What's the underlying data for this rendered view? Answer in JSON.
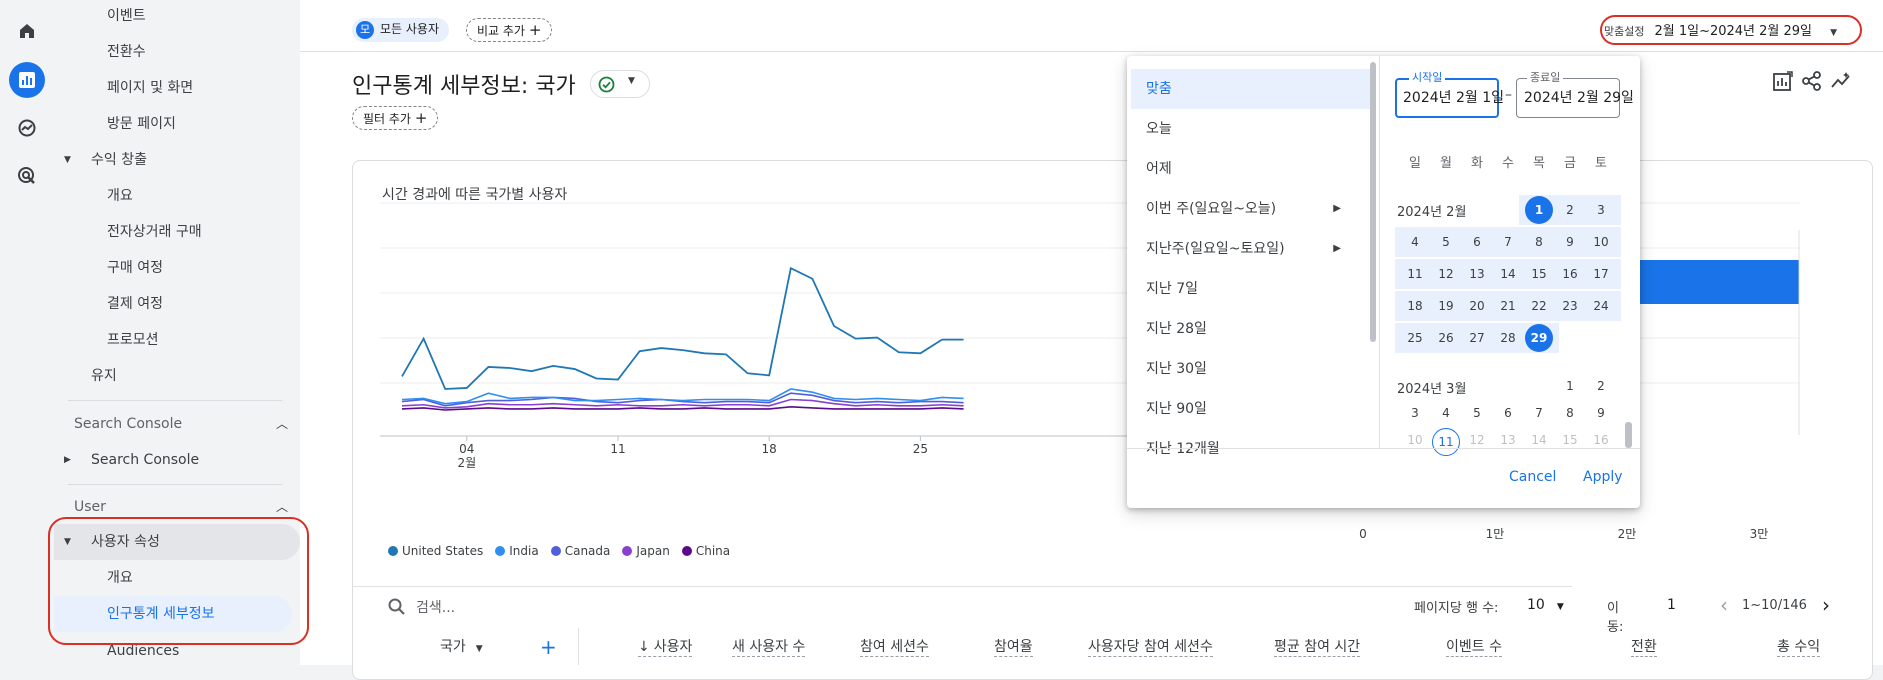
{
  "rail": {
    "icons": [
      "home-icon",
      "reports-icon",
      "explore-icon",
      "advertising-icon"
    ]
  },
  "sidebar": {
    "items_top": [
      {
        "label": "이벤트",
        "level": 2
      },
      {
        "label": "전환수",
        "level": 2
      },
      {
        "label": "페이지 및 화면",
        "level": 2
      },
      {
        "label": "방문 페이지",
        "level": 2
      },
      {
        "label": "수익 창출",
        "level": 1,
        "expanded": true
      },
      {
        "label": "개요",
        "level": 2
      },
      {
        "label": "전자상거래 구매",
        "level": 2
      },
      {
        "label": "구매 여정",
        "level": 2
      },
      {
        "label": "결제 여정",
        "level": 2
      },
      {
        "label": "프로모션",
        "level": 2
      },
      {
        "label": "유지",
        "level": 1
      }
    ],
    "search_console": {
      "header": "Search Console",
      "item": "Search Console"
    },
    "user": {
      "header": "User",
      "group": "사용자 속성",
      "items": [
        "개요",
        "인구통계 세부정보"
      ],
      "audiences": "Audiences"
    }
  },
  "topbar": {
    "audience_avatar": "모",
    "audience_label": "모든 사용자",
    "compare_label": "비교 추가",
    "date_prefix": "맞춤설정",
    "date_range": "2월 1일~2024년 2월 29일"
  },
  "page": {
    "title": "인구통계 세부정보: 국가",
    "filter_label": "필터 추가"
  },
  "chart": {
    "title": "시간 경과에 따른 국가별 사용자"
  },
  "chart_data": {
    "type": "line",
    "x_ticks": [
      {
        "day": 4,
        "label": "04",
        "sub": "2월"
      },
      {
        "day": 11,
        "label": "11"
      },
      {
        "day": 18,
        "label": "18"
      },
      {
        "day": 25,
        "label": "25"
      }
    ],
    "series": [
      {
        "name": "United States",
        "color": "#1f77b4",
        "values": [
          52,
          88,
          40,
          41,
          61,
          60,
          57,
          62,
          59,
          50,
          49,
          76,
          79,
          77,
          74,
          73,
          55,
          53,
          155,
          145,
          100,
          88,
          89,
          75,
          74,
          87,
          87
        ]
      },
      {
        "name": "India",
        "color": "#2f8ff0",
        "values": [
          30,
          31,
          26,
          28,
          36,
          31,
          32,
          32,
          29,
          29,
          30,
          31,
          30,
          29,
          30,
          30,
          30,
          29,
          40,
          37,
          31,
          30,
          31,
          30,
          29,
          32,
          31
        ]
      },
      {
        "name": "Canada",
        "color": "#4f5fdc",
        "values": [
          28,
          30,
          24,
          27,
          29,
          29,
          30,
          32,
          31,
          28,
          27,
          29,
          30,
          28,
          27,
          28,
          28,
          27,
          36,
          34,
          29,
          27,
          28,
          27,
          28,
          28,
          27
        ]
      },
      {
        "name": "Japan",
        "color": "#8a3fd1",
        "values": [
          24,
          25,
          22,
          23,
          26,
          25,
          25,
          26,
          25,
          24,
          25,
          24,
          24,
          25,
          24,
          25,
          25,
          24,
          30,
          29,
          26,
          24,
          25,
          24,
          24,
          25,
          24
        ]
      },
      {
        "name": "China",
        "color": "#5b0a8c",
        "values": [
          21,
          22,
          20,
          21,
          22,
          21,
          21,
          22,
          21,
          21,
          21,
          22,
          21,
          21,
          22,
          21,
          21,
          21,
          23,
          22,
          21,
          21,
          21,
          21,
          21,
          22,
          21
        ]
      }
    ],
    "bar": {
      "x_ticks": [
        "0",
        "1만",
        "2만",
        "3만"
      ],
      "value": 33000
    }
  },
  "table": {
    "search_placeholder": "검색...",
    "rows_per_page_label": "페이지당 행 수:",
    "rows_per_page": "10",
    "goto_label": "이동:",
    "goto_value": "1",
    "range": "1~10/146",
    "columns": [
      "국가",
      "사용자",
      "새 사용자 수",
      "참여 세션수",
      "참여율",
      "사용자당 참여 세션수",
      "평균 참여 시간",
      "이벤트 수",
      "전환",
      "총 수익"
    ]
  },
  "picker": {
    "presets": [
      {
        "label": "맞춤",
        "active": true
      },
      {
        "label": "오늘"
      },
      {
        "label": "어제"
      },
      {
        "label": "이번 주(일요일~오늘)",
        "submenu": true
      },
      {
        "label": "지난주(일요일~토요일)",
        "submenu": true
      },
      {
        "label": "지난 7일"
      },
      {
        "label": "지난 28일"
      },
      {
        "label": "지난 30일"
      },
      {
        "label": "지난 90일"
      },
      {
        "label": "지난 12개월"
      }
    ],
    "start_label": "시작일",
    "start_value": "2024년 2월 1일",
    "end_label": "종료일",
    "end_value": "2024년 2월 29일",
    "dash": "–",
    "weekdays": [
      "일",
      "월",
      "화",
      "수",
      "목",
      "금",
      "토"
    ],
    "feb": {
      "label": "2024년 2월",
      "start_dow": 4,
      "days": 29,
      "selected_start": 1,
      "selected_end": 29
    },
    "mar": {
      "label": "2024년 3월",
      "start_dow": 5,
      "visible_days": 16,
      "today": 11
    },
    "cancel": "Cancel",
    "apply": "Apply"
  }
}
